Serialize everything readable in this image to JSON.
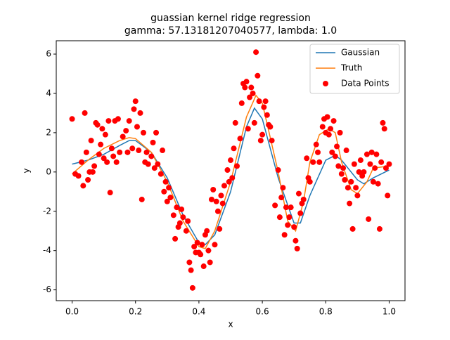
{
  "chart_data": {
    "type": "line-scatter",
    "title": "guassian kernel ridge regression",
    "subtitle": "gamma: 57.13181207040577, lambda: 1.0",
    "x_label": "x",
    "y_label": "y",
    "xlim": [
      -0.05,
      1.05
    ],
    "ylim": [
      -6.55,
      6.68
    ],
    "xticks": [
      {
        "value": 0,
        "label": "0.0"
      },
      {
        "value": 0.2,
        "label": "0.2"
      },
      {
        "value": 0.4,
        "label": "0.4"
      },
      {
        "value": 0.6,
        "label": "0.6"
      },
      {
        "value": 0.8,
        "label": "0.8"
      },
      {
        "value": 1,
        "label": "1.0"
      }
    ],
    "yticks": [
      -6,
      -4,
      -2,
      0,
      2,
      4,
      6
    ],
    "legend": "upper right",
    "series": [
      {
        "name": "Gaussian",
        "type": "line",
        "color": "#1f77b4",
        "x": [
          0,
          0.05,
          0.1,
          0.15,
          0.18,
          0.2,
          0.25,
          0.3,
          0.35,
          0.4,
          0.42,
          0.45,
          0.5,
          0.55,
          0.575,
          0.6,
          0.65,
          0.7,
          0.72,
          0.75,
          0.8,
          0.83,
          0.85,
          0.9,
          0.92,
          0.95,
          1.0
        ],
        "values": [
          0.4,
          0.6,
          0.9,
          1.35,
          1.6,
          1.6,
          1.0,
          -0.3,
          -2.2,
          -3.6,
          -3.7,
          -3.2,
          -1.0,
          2.3,
          3.25,
          2.7,
          -0.3,
          -2.6,
          -2.6,
          -1.2,
          0.6,
          0.85,
          0.6,
          -0.4,
          -0.6,
          -0.3,
          0.1
        ]
      },
      {
        "name": "Truth",
        "type": "line",
        "color": "#ff7f0e",
        "x": [
          0,
          0.05,
          0.1,
          0.15,
          0.18,
          0.2,
          0.25,
          0.3,
          0.35,
          0.4,
          0.42,
          0.45,
          0.5,
          0.55,
          0.58,
          0.6,
          0.65,
          0.68,
          0.705,
          0.73,
          0.75,
          0.78,
          0.81,
          0.83,
          0.85,
          0.88,
          0.9,
          0.93,
          0.95,
          1.0
        ],
        "values": [
          -0.1,
          0.6,
          1.2,
          1.6,
          1.75,
          1.7,
          1.0,
          -0.5,
          -2.5,
          -3.8,
          -3.9,
          -3.0,
          -0.5,
          2.8,
          3.9,
          3.5,
          0.0,
          -2.5,
          -3.0,
          -1.5,
          0.5,
          1.9,
          2.2,
          2.0,
          0.5,
          -0.9,
          -1.1,
          -0.5,
          0.2,
          0.3
        ]
      },
      {
        "name": "Data Points",
        "type": "scatter",
        "color": "#ff0000",
        "x": [
          0,
          0.01,
          0.02,
          0.03,
          0.035,
          0.04,
          0.045,
          0.05,
          0.055,
          0.06,
          0.065,
          0.07,
          0.075,
          0.08,
          0.085,
          0.09,
          0.095,
          0.1,
          0.105,
          0.11,
          0.115,
          0.12,
          0.125,
          0.13,
          0.135,
          0.14,
          0.145,
          0.15,
          0.16,
          0.17,
          0.175,
          0.18,
          0.19,
          0.195,
          0.2,
          0.205,
          0.21,
          0.215,
          0.22,
          0.225,
          0.23,
          0.235,
          0.24,
          0.25,
          0.255,
          0.26,
          0.265,
          0.27,
          0.28,
          0.285,
          0.29,
          0.295,
          0.3,
          0.305,
          0.31,
          0.32,
          0.325,
          0.33,
          0.335,
          0.34,
          0.345,
          0.35,
          0.36,
          0.365,
          0.37,
          0.375,
          0.38,
          0.385,
          0.39,
          0.395,
          0.4,
          0.405,
          0.41,
          0.415,
          0.42,
          0.425,
          0.43,
          0.435,
          0.44,
          0.445,
          0.45,
          0.455,
          0.46,
          0.465,
          0.47,
          0.475,
          0.48,
          0.49,
          0.495,
          0.5,
          0.505,
          0.51,
          0.515,
          0.52,
          0.53,
          0.535,
          0.54,
          0.545,
          0.55,
          0.555,
          0.56,
          0.565,
          0.57,
          0.575,
          0.58,
          0.585,
          0.59,
          0.595,
          0.6,
          0.605,
          0.61,
          0.615,
          0.62,
          0.625,
          0.63,
          0.64,
          0.65,
          0.655,
          0.66,
          0.665,
          0.67,
          0.675,
          0.68,
          0.685,
          0.69,
          0.7,
          0.705,
          0.71,
          0.715,
          0.72,
          0.725,
          0.73,
          0.74,
          0.745,
          0.75,
          0.76,
          0.77,
          0.775,
          0.78,
          0.79,
          0.795,
          0.8,
          0.805,
          0.81,
          0.815,
          0.82,
          0.825,
          0.83,
          0.835,
          0.84,
          0.845,
          0.85,
          0.855,
          0.86,
          0.865,
          0.87,
          0.875,
          0.88,
          0.885,
          0.89,
          0.895,
          0.9,
          0.905,
          0.91,
          0.915,
          0.92,
          0.93,
          0.935,
          0.94,
          0.945,
          0.95,
          0.955,
          0.96,
          0.965,
          0.97,
          0.975,
          0.98,
          0.985,
          0.99,
          0.995,
          1.0
        ],
        "values": [
          2.7,
          -0.1,
          -0.2,
          0.5,
          -0.7,
          3.0,
          1.0,
          -0.4,
          0.0,
          1.6,
          0.0,
          0.3,
          2.5,
          2.4,
          0.9,
          1.4,
          2.2,
          0.7,
          1.9,
          0.5,
          2.6,
          -1.05,
          1.2,
          0.8,
          2.6,
          0.5,
          2.7,
          1.0,
          1.8,
          2.1,
          1.0,
          2.6,
          1.2,
          3.2,
          3.6,
          2.3,
          1.1,
          3.0,
          -1.4,
          2.0,
          0.5,
          1.0,
          0.4,
          0.8,
          1.5,
          0.2,
          2.0,
          0.4,
          -0.1,
          1.1,
          -1.0,
          -0.5,
          -1.5,
          -0.8,
          -1.3,
          -2.2,
          -3.4,
          -1.8,
          -2.8,
          -2.6,
          -1.9,
          -2.3,
          -3.0,
          -2.5,
          -4.6,
          -5.0,
          -5.9,
          -3.8,
          -4.1,
          -3.6,
          -4.1,
          -4.2,
          -3.7,
          -4.8,
          -3.2,
          -3.0,
          -4.0,
          -4.6,
          -1.4,
          -0.9,
          -3.7,
          -1.5,
          -2.0,
          -2.9,
          -1.2,
          -1.6,
          -0.7,
          0.1,
          -0.5,
          0.6,
          -0.3,
          1.2,
          2.5,
          0.3,
          1.7,
          3.5,
          4.5,
          4.3,
          4.6,
          2.2,
          3.8,
          4.3,
          4.0,
          2.5,
          6.1,
          4.9,
          3.6,
          1.6,
          1.9,
          3.3,
          3.6,
          2.9,
          2.4,
          2.3,
          1.6,
          -1.7,
          0.1,
          -2.3,
          -1.3,
          -0.8,
          -3.2,
          -1.8,
          -2.7,
          -2.3,
          -1.8,
          -2.8,
          -3.5,
          -3.9,
          -1.1,
          -2.1,
          -1.6,
          -1.4,
          0.7,
          -0.3,
          -0.5,
          0.5,
          1.4,
          1.0,
          0.5,
          2.3,
          2.7,
          2.0,
          2.8,
          1.9,
          2.2,
          1.0,
          2.6,
          0.8,
          1.3,
          0.3,
          2.0,
          -0.1,
          0.2,
          -0.4,
          1.1,
          -0.8,
          -1.6,
          -0.5,
          -2.9,
          0.4,
          -0.8,
          -1.2,
          0.0,
          0.6,
          -0.2,
          0.0,
          0.9,
          -2.4,
          0.4,
          1.0,
          -0.5,
          0.2,
          0.9,
          -0.6,
          -2.9,
          0.5,
          2.5,
          2.2,
          0.2,
          -1.2,
          0.4
        ]
      }
    ]
  }
}
